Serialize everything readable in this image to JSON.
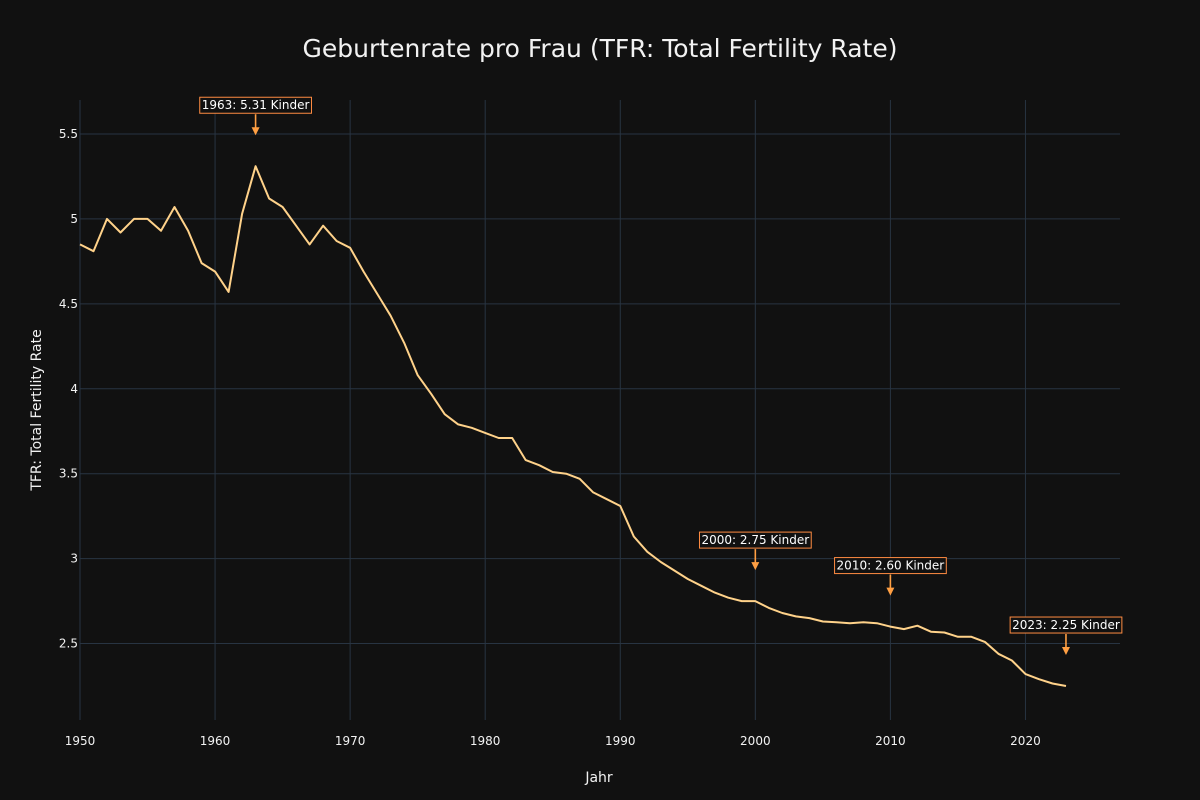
{
  "chart_data": {
    "type": "line",
    "title": "Geburtenrate pro Frau (TFR: Total Fertility Rate)",
    "xlabel": "Jahr",
    "ylabel": "TFR: Total Fertility Rate",
    "xlim": [
      1950,
      2027
    ],
    "ylim": [
      2.05,
      5.7
    ],
    "x_ticks": [
      1950,
      1960,
      1970,
      1980,
      1990,
      2000,
      2010,
      2020
    ],
    "y_ticks": [
      2.5,
      3,
      3.5,
      4,
      4.5,
      5,
      5.5
    ],
    "y_tick_labels": [
      "2.5",
      "3",
      "3.5",
      "4",
      "4.5",
      "5",
      "5.5"
    ],
    "grid": true,
    "colors": {
      "background": "#111111",
      "grid": "#283442",
      "line": "#ffd28a",
      "annotation_border": "#ff8c42",
      "annotation_arrow": "#ff9f43",
      "text": "#f2f2f2"
    },
    "series": [
      {
        "x": [
          1950,
          1951,
          1952,
          1953,
          1954,
          1955,
          1956,
          1957,
          1958,
          1959,
          1960,
          1961,
          1962,
          1963,
          1964,
          1965,
          1966,
          1967,
          1968,
          1969,
          1970,
          1971,
          1972,
          1973,
          1974,
          1975,
          1976,
          1977,
          1978,
          1979,
          1980,
          1981,
          1982,
          1983,
          1984,
          1985,
          1986,
          1987,
          1988,
          1989,
          1990,
          1991,
          1992,
          1993,
          1994,
          1995,
          1996,
          1997,
          1998,
          1999,
          2000,
          2001,
          2002,
          2003,
          2004,
          2005,
          2006,
          2007,
          2008,
          2009,
          2010,
          2011,
          2012,
          2013,
          2014,
          2015,
          2016,
          2017,
          2018,
          2019,
          2020,
          2021,
          2022,
          2023
        ],
        "y": [
          4.85,
          4.81,
          5.0,
          4.92,
          5.0,
          5.0,
          4.93,
          5.07,
          4.93,
          4.74,
          4.69,
          4.57,
          5.03,
          5.31,
          5.12,
          5.07,
          4.96,
          4.85,
          4.96,
          4.87,
          4.83,
          4.69,
          4.56,
          4.43,
          4.27,
          4.08,
          3.97,
          3.85,
          3.79,
          3.77,
          3.74,
          3.71,
          3.71,
          3.58,
          3.55,
          3.51,
          3.5,
          3.47,
          3.39,
          3.35,
          3.31,
          3.13,
          3.04,
          2.98,
          2.93,
          2.88,
          2.84,
          2.8,
          2.77,
          2.75,
          2.75,
          2.71,
          2.68,
          2.66,
          2.65,
          2.63,
          2.625,
          2.62,
          2.625,
          2.62,
          2.6,
          2.585,
          2.605,
          2.57,
          2.565,
          2.54,
          2.54,
          2.51,
          2.44,
          2.4,
          2.32,
          2.29,
          2.265,
          2.25
        ]
      }
    ],
    "annotations": [
      {
        "x": 1963,
        "y": 5.31,
        "text": "1963: 5.31 Kinder"
      },
      {
        "x": 2000,
        "y": 2.75,
        "text": "2000: 2.75 Kinder"
      },
      {
        "x": 2010,
        "y": 2.6,
        "text": "2010: 2.60 Kinder"
      },
      {
        "x": 2023,
        "y": 2.25,
        "text": "2023: 2.25 Kinder"
      }
    ]
  }
}
